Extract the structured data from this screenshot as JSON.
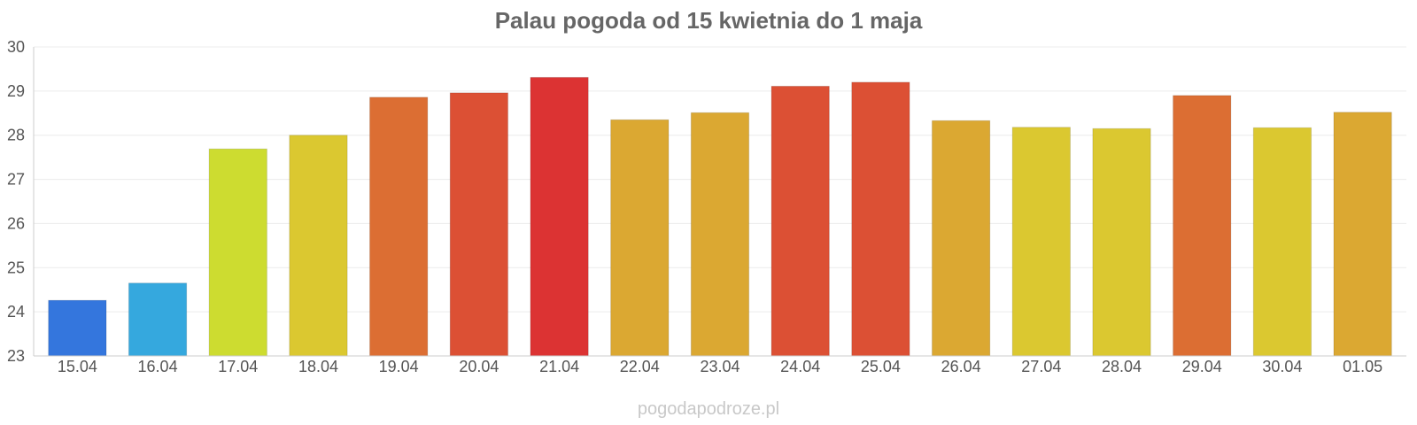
{
  "chart_data": {
    "type": "bar",
    "title": "Palau pogoda od 15 kwietnia do 1 maja",
    "xlabel": "",
    "ylabel": "",
    "ylim": [
      23,
      30
    ],
    "yticks": [
      23,
      24,
      25,
      26,
      27,
      28,
      29,
      30
    ],
    "grid": true,
    "categories": [
      "15.04",
      "16.04",
      "17.04",
      "18.04",
      "19.04",
      "20.04",
      "21.04",
      "22.04",
      "23.04",
      "24.04",
      "25.04",
      "26.04",
      "27.04",
      "28.04",
      "29.04",
      "30.04",
      "01.05"
    ],
    "values": [
      24.26,
      24.65,
      27.69,
      28.0,
      28.86,
      28.96,
      29.31,
      28.35,
      28.51,
      29.11,
      29.2,
      28.33,
      28.18,
      28.15,
      28.9,
      28.17,
      28.52
    ],
    "colors": [
      "#3476dd",
      "#35a8de",
      "#cddc30",
      "#dbc830",
      "#dc6e33",
      "#dc5034",
      "#dc3333",
      "#dba832",
      "#dba832",
      "#dc5034",
      "#dc5034",
      "#dba832",
      "#dbc830",
      "#dbc830",
      "#dc6e33",
      "#dbc830",
      "#dba832"
    ]
  },
  "footer": {
    "source": "pogodapodroze.pl"
  }
}
